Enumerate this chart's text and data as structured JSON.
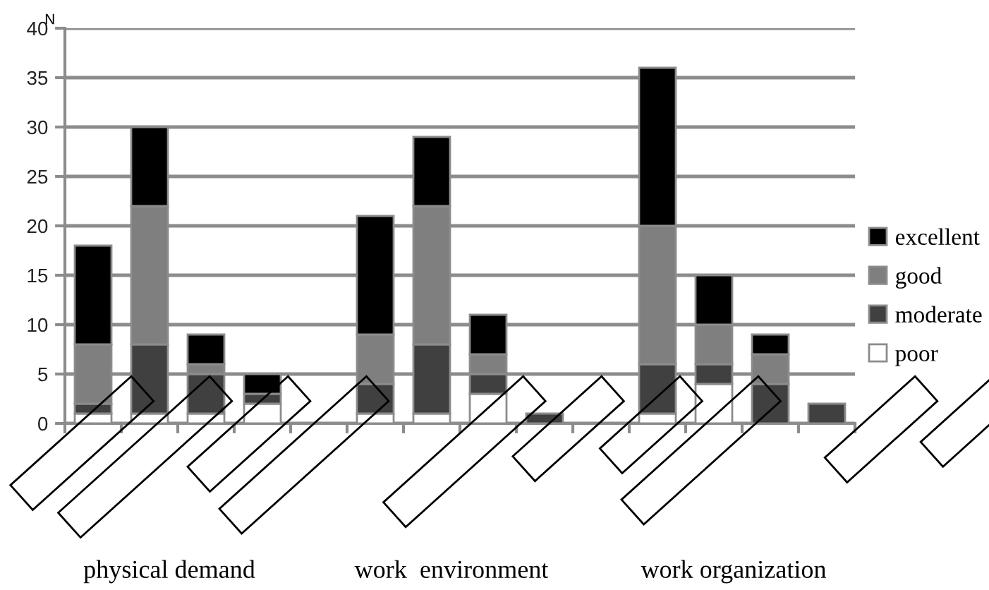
{
  "chart_data": {
    "type": "bar",
    "stacked": true,
    "ylabel": "N",
    "categories": [
      null,
      null,
      null,
      null,
      null,
      null,
      null,
      null,
      null,
      null,
      null,
      null,
      null,
      null
    ],
    "series": [
      {
        "name": "poor",
        "color": "#ffffff",
        "values": [
          1,
          1,
          1,
          2,
          null,
          1,
          1,
          3,
          0,
          null,
          1,
          4,
          0,
          0
        ]
      },
      {
        "name": "moderate",
        "color": "#404040",
        "values": [
          1,
          7,
          4,
          1,
          null,
          3,
          7,
          2,
          1,
          null,
          5,
          2,
          4,
          2
        ]
      },
      {
        "name": "good",
        "color": "#7f7f7f",
        "values": [
          6,
          14,
          1,
          0,
          null,
          5,
          14,
          2,
          0,
          null,
          14,
          4,
          3,
          0
        ]
      },
      {
        "name": "excellent",
        "color": "#000000",
        "values": [
          10,
          8,
          3,
          2,
          null,
          12,
          7,
          4,
          0,
          null,
          16,
          5,
          2,
          0
        ]
      }
    ],
    "ylim": [
      0,
      40
    ],
    "yticks": [
      0,
      5,
      10,
      15,
      20,
      25,
      30,
      35,
      40
    ],
    "grid": "y",
    "legend": "right",
    "annotations": [
      "physical demand",
      "work  environment",
      "work organization"
    ]
  }
}
